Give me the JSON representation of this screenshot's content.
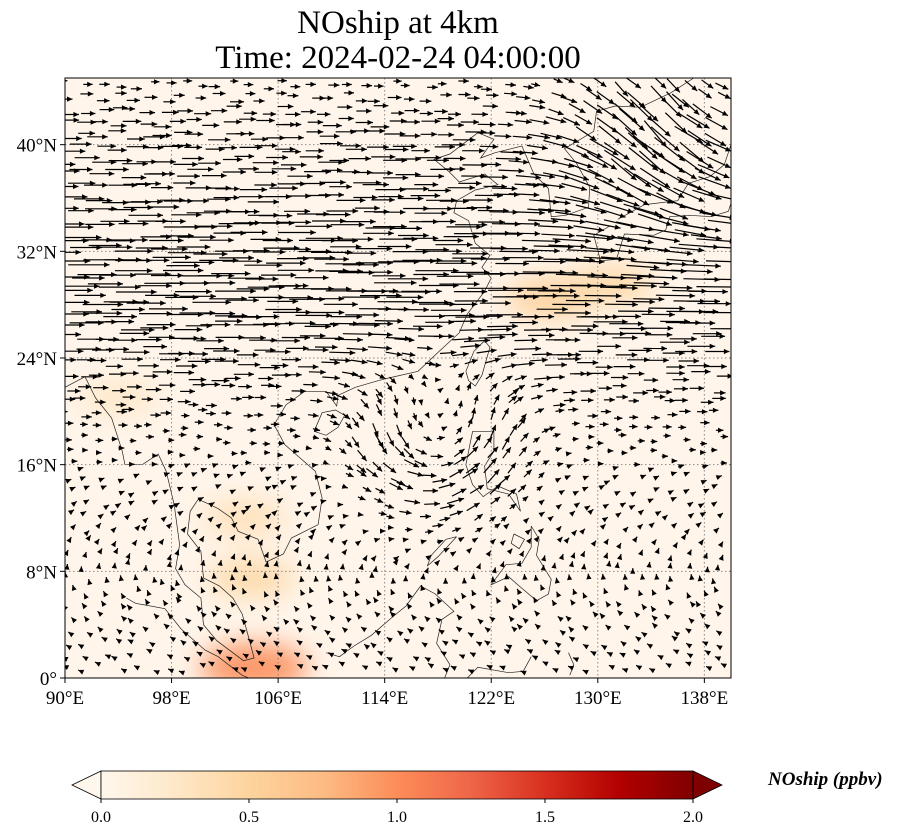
{
  "title": {
    "line1": "NOship at 4km",
    "line2": "Time: 2024-02-24 04:00:00"
  },
  "map": {
    "variable": "NOship",
    "level": "4km",
    "extent": {
      "lon": [
        90,
        140
      ],
      "lat": [
        0,
        45
      ]
    },
    "lon_ticks": [
      90,
      98,
      106,
      114,
      122,
      130,
      138
    ],
    "lat_ticks": [
      0,
      8,
      16,
      24,
      32,
      40
    ],
    "lon_tick_labels": [
      "90°E",
      "98°E",
      "106°E",
      "114°E",
      "122°E",
      "130°E",
      "138°E"
    ],
    "lat_tick_labels": [
      "0°",
      "8°N",
      "16°N",
      "24°N",
      "32°N",
      "40°N"
    ],
    "gridlines": true,
    "overlay": "wind-vectors",
    "coastlines": true
  },
  "colorbar": {
    "label": "NOship (ppbv)",
    "cmap": "OrRd",
    "min": 0.0,
    "max": 2.0,
    "ticks": [
      0.0,
      0.5,
      1.0,
      1.5,
      2.0
    ],
    "tick_labels": [
      "0.0",
      "0.5",
      "1.0",
      "1.5",
      "2.0"
    ],
    "extend": "both",
    "colors": [
      "#fff7ec",
      "#fee8c8",
      "#fdd49e",
      "#fdbb84",
      "#fc8d59",
      "#ef6548",
      "#d7301f",
      "#b30000",
      "#7f0000"
    ]
  },
  "hotspots": [
    {
      "lon": 126.5,
      "lat": 28.5,
      "value": 0.55
    },
    {
      "lon": 131.0,
      "lat": 29.5,
      "value": 0.45
    },
    {
      "lon": 104.0,
      "lat": 7.5,
      "value": 0.45
    },
    {
      "lon": 104.2,
      "lat": 0.8,
      "value": 1.0
    },
    {
      "lon": 103.5,
      "lat": 12.0,
      "value": 0.35
    },
    {
      "lon": 94.0,
      "lat": 21.0,
      "value": 0.25
    }
  ]
}
